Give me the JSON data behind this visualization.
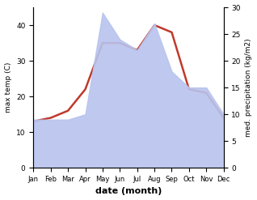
{
  "months": [
    "Jan",
    "Feb",
    "Mar",
    "Apr",
    "May",
    "Jun",
    "Jul",
    "Aug",
    "Sep",
    "Oct",
    "Nov",
    "Dec"
  ],
  "max_temp": [
    13,
    14,
    16,
    22,
    35,
    35,
    33,
    40,
    38,
    22,
    21,
    14
  ],
  "precipitation": [
    9,
    9,
    9,
    10,
    29,
    24,
    22,
    27,
    18,
    15,
    15,
    10
  ],
  "temp_ylim": [
    0,
    45
  ],
  "precip_ylim": [
    0,
    30
  ],
  "temp_color": "#c0392b",
  "precip_fill_color": "#b8c4ee",
  "precip_line_color": "#9090c0",
  "xlabel": "date (month)",
  "ylabel_left": "max temp (C)",
  "ylabel_right": "med. precipitation (kg/m2)",
  "temp_yticks": [
    0,
    10,
    20,
    30,
    40
  ],
  "precip_yticks": [
    0,
    5,
    10,
    15,
    20,
    25,
    30
  ],
  "bg_color": "#ffffff"
}
